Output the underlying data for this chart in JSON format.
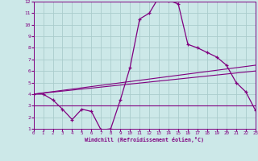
{
  "title": "",
  "xlabel": "Windchill (Refroidissement éolien,°C)",
  "ylabel": "",
  "bg_color": "#cce8e8",
  "line_color": "#800080",
  "grid_color": "#aacccc",
  "xmin": 0,
  "xmax": 23,
  "ymin": 1,
  "ymax": 12,
  "main_x": [
    0,
    1,
    2,
    3,
    4,
    5,
    6,
    7,
    8,
    9,
    10,
    11,
    12,
    13,
    14,
    15,
    16,
    17,
    18,
    19,
    20,
    21,
    22,
    23
  ],
  "main_y": [
    4.0,
    4.0,
    3.5,
    2.7,
    1.8,
    2.7,
    2.5,
    0.9,
    1.0,
    3.5,
    6.3,
    10.5,
    11.0,
    12.4,
    12.1,
    11.8,
    8.3,
    8.0,
    7.6,
    7.2,
    6.5,
    5.0,
    4.2,
    2.6
  ],
  "line1_x": [
    0,
    23
  ],
  "line1_y": [
    4.0,
    6.5
  ],
  "line2_x": [
    0,
    23
  ],
  "line2_y": [
    4.0,
    6.0
  ],
  "line3_x": [
    0,
    23
  ],
  "line3_y": [
    3.0,
    3.0
  ]
}
